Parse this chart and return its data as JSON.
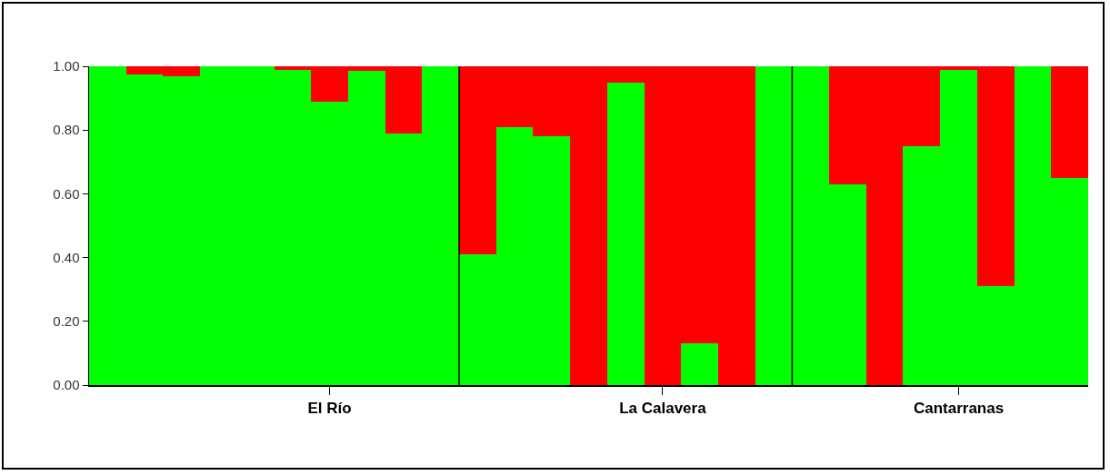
{
  "chart_data": {
    "type": "bar",
    "stacked": true,
    "categories": [
      null,
      null,
      null,
      null,
      null,
      null,
      "El Río",
      null,
      null,
      null,
      null,
      null,
      null,
      null,
      null,
      "La Calavera",
      null,
      null,
      null,
      null,
      null,
      null,
      null,
      "Cantarranas",
      null,
      null,
      null
    ],
    "ylim": [
      0,
      1
    ],
    "yticks": [
      {
        "value": 0,
        "label": "0.00"
      },
      {
        "value": 0.2,
        "label": "0.20"
      },
      {
        "value": 0.4,
        "label": "0.40"
      },
      {
        "value": 0.6,
        "label": "0.60"
      },
      {
        "value": 0.8,
        "label": "0.80"
      },
      {
        "value": 1,
        "label": "1.00"
      }
    ],
    "series": [
      {
        "color": "#00ff00",
        "values": [
          1.0,
          0.975,
          0.97,
          1.0,
          1.0,
          0.99,
          0.89,
          0.985,
          0.79,
          1.0,
          0.41,
          0.81,
          0.78,
          0.0,
          0.95,
          0.0,
          0.13,
          0.0,
          1.0,
          1.0,
          0.63,
          0.0,
          0.75,
          0.99,
          0.31,
          1.0,
          0.65
        ]
      },
      {
        "color": "#ff0000",
        "values": [
          0.0,
          0.025,
          0.03,
          0.0,
          0.0,
          0.01,
          0.11,
          0.015,
          0.21,
          0.0,
          0.59,
          0.19,
          0.22,
          1.0,
          0.05,
          1.0,
          0.87,
          1.0,
          0.0,
          0.0,
          0.37,
          1.0,
          0.25,
          0.01,
          0.69,
          0.0,
          0.35
        ]
      }
    ]
  }
}
